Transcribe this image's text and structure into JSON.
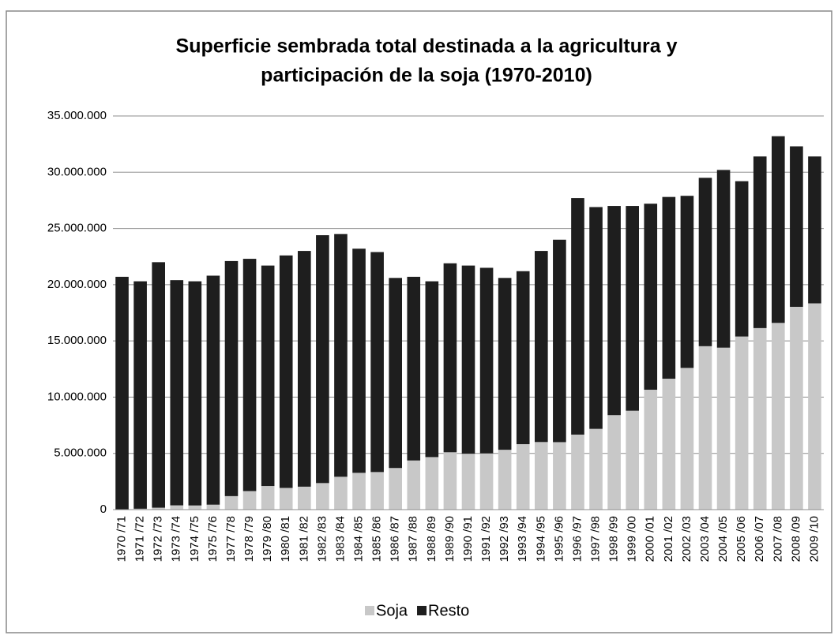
{
  "chart_data": {
    "type": "stacked_bar",
    "title": [
      "Superficie sembrada total destinada a la agricultura y",
      "participación de la soja (1970-2010)"
    ],
    "categories": [
      "1970 /71",
      "1971 /72",
      "1972 /73",
      "1973 /74",
      "1974 /75",
      "1975 /76",
      "1977 /78",
      "1978 /79",
      "1979 /80",
      "1980 /81",
      "1981 /82",
      "1982 /83",
      "1983 /84",
      "1984 /85",
      "1985 /86",
      "1986 /87",
      "1987 /88",
      "1988 /89",
      "1989 /90",
      "1990 /91",
      "1991 /92",
      "1992 /93",
      "1993 /94",
      "1994 /95",
      "1995 /96",
      "1996 /97",
      "1997 /98",
      "1998 /99",
      "1999 /00",
      "2000 /01",
      "2001 /02",
      "2002 /03",
      "2003 /04",
      "2004 /05",
      "2005 /06",
      "2006 /07",
      "2007 /08",
      "2008 /09",
      "2009 /10"
    ],
    "series": [
      {
        "name": "Soja",
        "color": "#c8c8c8",
        "values": [
          30000,
          80000,
          170000,
          380000,
          370000,
          440000,
          1200000,
          1650000,
          2100000,
          1930000,
          2040000,
          2360000,
          2920000,
          3270000,
          3340000,
          3700000,
          4370000,
          4670000,
          5100000,
          4970000,
          5000000,
          5320000,
          5820000,
          6010000,
          6000000,
          6670000,
          7180000,
          8400000,
          8790000,
          10660000,
          11640000,
          12600000,
          14530000,
          14400000,
          15390000,
          16140000,
          16600000,
          18030000,
          18340000
        ]
      },
      {
        "name": "Resto",
        "color": "#1e1e1e",
        "values": [
          20670000,
          20220000,
          21830000,
          20020000,
          19930000,
          20360000,
          20900000,
          20650000,
          19600000,
          20670000,
          20960000,
          22040000,
          21580000,
          19930000,
          19560000,
          16900000,
          16330000,
          15630000,
          16800000,
          16730000,
          16500000,
          15280000,
          15380000,
          16990000,
          18000000,
          21030000,
          19720000,
          18600000,
          18210000,
          16540000,
          16160000,
          15300000,
          14970000,
          15800000,
          13810000,
          15260000,
          16600000,
          14270000,
          13060000
        ]
      }
    ],
    "ylim": [
      0,
      35000000
    ],
    "yticks": [
      0,
      {
        "value": 5000000,
        "label": "5.000.000"
      },
      {
        "value": 10000000,
        "label": "10.000.000"
      },
      {
        "value": 15000000,
        "label": "15.000.000"
      },
      {
        "value": 20000000,
        "label": "20.000.000"
      },
      {
        "value": 25000000,
        "label": "25.000.000"
      },
      {
        "value": 30000000,
        "label": "30.000.000"
      },
      {
        "value": 35000000,
        "label": "35.000.000"
      }
    ],
    "grid": true,
    "legend": "bottom"
  }
}
